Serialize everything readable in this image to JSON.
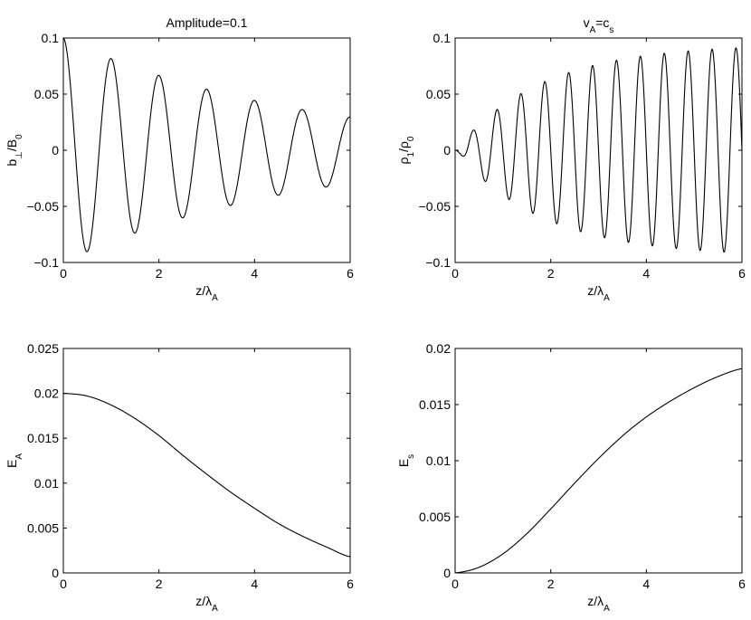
{
  "chart_data": [
    {
      "type": "line",
      "title": "Amplitude=0.1",
      "title_rich": [
        {
          "t": "Amplitude=0.1"
        }
      ],
      "ylabel_rich": [
        {
          "t": "b"
        },
        {
          "t": "⊥",
          "sub": true
        },
        {
          "t": "/B"
        },
        {
          "t": "0",
          "sub": true
        }
      ],
      "xlabel_rich": [
        {
          "t": "z/λ"
        },
        {
          "t": "A",
          "sub": true
        }
      ],
      "xlim": [
        0,
        6
      ],
      "ylim": [
        -0.1,
        0.1
      ],
      "xticks": [
        0,
        2,
        4,
        6
      ],
      "xtick_labels": [
        "0",
        "2",
        "4",
        "6"
      ],
      "yticks": [
        -0.1,
        -0.05,
        0,
        0.05,
        0.1
      ],
      "ytick_labels": [
        "−0.1",
        "−0.05",
        "0",
        "0.05",
        "0.1"
      ],
      "grid": false,
      "series": [
        {
          "color": "#000000",
          "x": [
            0,
            0.5,
            1.0,
            1.5,
            2.0,
            2.5,
            3.0,
            3.5,
            4.0,
            4.5,
            5.0,
            5.5,
            6.0
          ],
          "y": [
            0.1,
            -0.099,
            0.095,
            -0.089,
            0.083,
            -0.075,
            0.068,
            -0.06,
            0.053,
            -0.045,
            0.04,
            -0.034,
            0.03
          ]
        }
      ]
    },
    {
      "type": "line",
      "title": "vA=cs",
      "title_rich": [
        {
          "t": "v"
        },
        {
          "t": "A",
          "sub": true
        },
        {
          "t": "=c"
        },
        {
          "t": "s",
          "sub": true
        }
      ],
      "ylabel_rich": [
        {
          "t": "ρ"
        },
        {
          "t": "1",
          "sub": true
        },
        {
          "t": "/ρ"
        },
        {
          "t": "0",
          "sub": true
        }
      ],
      "xlabel_rich": [
        {
          "t": "z/λ"
        },
        {
          "t": "A",
          "sub": true
        }
      ],
      "xlim": [
        0,
        6
      ],
      "ylim": [
        -0.1,
        0.1
      ],
      "xticks": [
        0,
        2,
        4,
        6
      ],
      "xtick_labels": [
        "0",
        "2",
        "4",
        "6"
      ],
      "yticks": [
        -0.1,
        -0.05,
        0,
        0.05,
        0.1
      ],
      "ytick_labels": [
        "−0.1",
        "−0.05",
        "0",
        "0.05",
        "0.1"
      ],
      "grid": false,
      "series": [
        {
          "color": "#000000",
          "x": [
            0,
            0.13,
            0.38,
            0.63,
            0.88,
            1.13,
            1.38,
            1.63,
            1.88,
            2.13,
            2.38,
            2.63,
            2.88,
            3.13,
            3.38,
            3.63,
            3.88,
            4.13,
            4.38,
            4.63,
            4.88,
            5.13,
            5.38,
            5.63,
            5.88,
            6.0
          ],
          "y": [
            0,
            0.005,
            -0.012,
            0.02,
            -0.028,
            0.034,
            -0.04,
            0.048,
            -0.053,
            0.058,
            -0.063,
            0.067,
            -0.07,
            0.073,
            -0.076,
            0.079,
            -0.082,
            0.085,
            -0.087,
            0.089,
            -0.09,
            0.091,
            -0.092,
            0.093,
            -0.094,
            0.06
          ]
        }
      ]
    },
    {
      "type": "line",
      "title_rich": [],
      "ylabel_rich": [
        {
          "t": "E"
        },
        {
          "t": "A",
          "sub": true
        }
      ],
      "xlabel_rich": [
        {
          "t": "z/λ"
        },
        {
          "t": "A",
          "sub": true
        }
      ],
      "xlim": [
        0,
        6
      ],
      "ylim": [
        0,
        0.025
      ],
      "xticks": [
        0,
        2,
        4,
        6
      ],
      "xtick_labels": [
        "0",
        "2",
        "4",
        "6"
      ],
      "yticks": [
        0,
        0.005,
        0.01,
        0.015,
        0.02,
        0.025
      ],
      "ytick_labels": [
        "0",
        "0.005",
        "0.01",
        "0.015",
        "0.02",
        "0.025"
      ],
      "grid": false,
      "series": [
        {
          "color": "#000000",
          "x": [
            0,
            0.5,
            1.0,
            1.5,
            2.0,
            2.5,
            3.0,
            3.5,
            4.0,
            4.5,
            5.0,
            5.5,
            6.0
          ],
          "y": [
            0.02,
            0.0197,
            0.0187,
            0.0172,
            0.0153,
            0.0131,
            0.011,
            0.009,
            0.0072,
            0.0055,
            0.0041,
            0.0029,
            0.0018
          ]
        }
      ]
    },
    {
      "type": "line",
      "title_rich": [],
      "ylabel_rich": [
        {
          "t": "E"
        },
        {
          "t": "s",
          "sub": true
        }
      ],
      "xlabel_rich": [
        {
          "t": "z/λ"
        },
        {
          "t": "A",
          "sub": true
        }
      ],
      "xlim": [
        0,
        6
      ],
      "ylim": [
        0,
        0.02
      ],
      "xticks": [
        0,
        2,
        4,
        6
      ],
      "xtick_labels": [
        "0",
        "2",
        "4",
        "6"
      ],
      "yticks": [
        0,
        0.005,
        0.01,
        0.015,
        0.02
      ],
      "ytick_labels": [
        "0",
        "0.005",
        "0.01",
        "0.015",
        "0.02"
      ],
      "grid": false,
      "series": [
        {
          "color": "#000000",
          "x": [
            0,
            0.5,
            1.0,
            1.5,
            2.0,
            2.5,
            3.0,
            3.5,
            4.0,
            4.5,
            5.0,
            5.5,
            6.0
          ],
          "y": [
            0,
            0.0005,
            0.0017,
            0.0035,
            0.0057,
            0.008,
            0.0102,
            0.0122,
            0.0139,
            0.0153,
            0.0165,
            0.0175,
            0.0182
          ]
        }
      ]
    }
  ]
}
